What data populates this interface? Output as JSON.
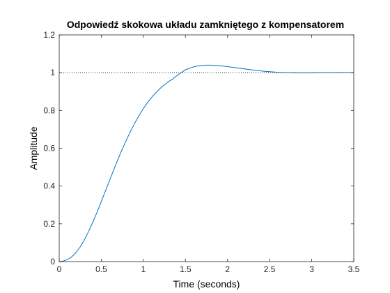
{
  "chart_data": {
    "type": "line",
    "title": "Odpowiedź skokowa układu zamkniętego z kompensatorem",
    "xlabel": "Time (seconds)",
    "ylabel": "Amplitude",
    "xlim": [
      0,
      3.5
    ],
    "ylim": [
      0,
      1.2
    ],
    "xticks": [
      0,
      0.5,
      1,
      1.5,
      2,
      2.5,
      3,
      3.5
    ],
    "xtick_labels": [
      "0",
      "0.5",
      "1",
      "1.5",
      "2",
      "2.5",
      "3",
      "3.5"
    ],
    "yticks": [
      0,
      0.2,
      0.4,
      0.6,
      0.8,
      1,
      1.2
    ],
    "ytick_labels": [
      "0",
      "0.2",
      "0.4",
      "0.6",
      "0.8",
      "1",
      "1.2"
    ],
    "grid": false,
    "reference_line": {
      "y": 1,
      "style": "dotted",
      "color": "#000000"
    },
    "series": [
      {
        "color": "#0072BD",
        "x": [
          0,
          0.05,
          0.1,
          0.15,
          0.2,
          0.25,
          0.3,
          0.35,
          0.4,
          0.45,
          0.5,
          0.55,
          0.6,
          0.65,
          0.7,
          0.75,
          0.8,
          0.85,
          0.9,
          0.95,
          1.0,
          1.05,
          1.1,
          1.15,
          1.2,
          1.25,
          1.3,
          1.35,
          1.4,
          1.45,
          1.5,
          1.55,
          1.6,
          1.65,
          1.7,
          1.75,
          1.8,
          1.85,
          1.9,
          2.0,
          2.1,
          2.2,
          2.3,
          2.4,
          2.5,
          2.6,
          2.7,
          2.8,
          2.9,
          3.0,
          3.1,
          3.2,
          3.3,
          3.4,
          3.5
        ],
        "y": [
          0,
          0.003,
          0.011,
          0.026,
          0.048,
          0.078,
          0.116,
          0.16,
          0.21,
          0.262,
          0.318,
          0.375,
          0.432,
          0.488,
          0.543,
          0.596,
          0.645,
          0.692,
          0.735,
          0.774,
          0.81,
          0.842,
          0.87,
          0.895,
          0.917,
          0.936,
          0.953,
          0.967,
          0.985,
          1.0,
          1.015,
          1.024,
          1.031,
          1.036,
          1.038,
          1.04,
          1.04,
          1.039,
          1.037,
          1.032,
          1.026,
          1.02,
          1.014,
          1.009,
          1.005,
          1.002,
          1.0,
          0.999,
          0.999,
          0.999,
          1.0,
          1.0,
          1.0,
          1.0,
          1.0
        ]
      }
    ]
  }
}
